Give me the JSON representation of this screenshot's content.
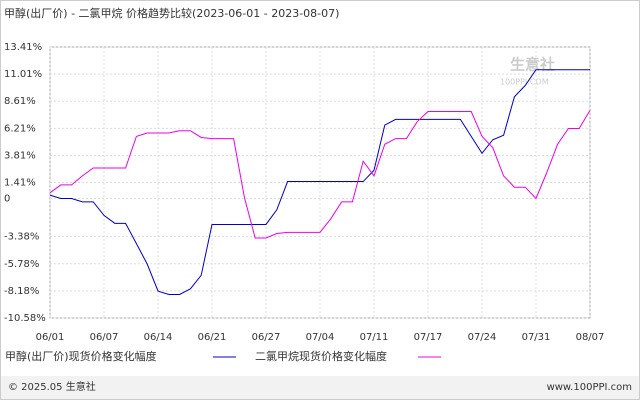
{
  "chart_data": {
    "type": "line",
    "title": "甲醇(出厂价) - 二氯甲烷 价格趋势比较(2023-06-01 - 2023-08-07)",
    "categories": [
      "06/01",
      null,
      null,
      null,
      null,
      "06/07",
      null,
      null,
      null,
      null,
      "06/14",
      null,
      null,
      null,
      null,
      "06/21",
      null,
      null,
      null,
      null,
      "06/27",
      null,
      null,
      null,
      null,
      "07/04",
      null,
      null,
      null,
      null,
      "07/11",
      null,
      null,
      null,
      null,
      "07/17",
      null,
      null,
      null,
      null,
      "07/24",
      null,
      null,
      null,
      null,
      "07/31",
      null,
      null,
      null,
      null,
      "08/07"
    ],
    "series": [
      {
        "name": "甲醇(出厂价)现货价格变化幅度",
        "color": "#0000cc",
        "values": [
          0.3,
          0.0,
          0.0,
          -0.3,
          -0.3,
          -1.5,
          -2.2,
          -2.2,
          -4.0,
          -5.8,
          -8.2,
          -8.5,
          -8.5,
          -8.0,
          -6.8,
          -2.3,
          -2.3,
          -2.3,
          -2.3,
          -2.3,
          -2.3,
          -1.0,
          1.5,
          1.5,
          1.5,
          1.5,
          1.5,
          1.5,
          1.5,
          1.5,
          2.5,
          6.5,
          7.0,
          7.0,
          7.0,
          7.0,
          7.0,
          7.0,
          7.0,
          5.5,
          4.0,
          5.2,
          5.6,
          9.0,
          10.0,
          11.4,
          11.4,
          11.4,
          11.4,
          11.4,
          11.4
        ]
      },
      {
        "name": "二氯甲烷现货价格变化幅度",
        "color": "#ee00ee",
        "values": [
          0.5,
          1.2,
          1.2,
          2.0,
          2.7,
          2.7,
          2.7,
          2.7,
          5.5,
          5.8,
          5.8,
          5.8,
          6.0,
          6.0,
          5.4,
          5.3,
          5.3,
          5.3,
          0.1,
          -3.5,
          -3.5,
          -3.1,
          -3.0,
          -3.0,
          -3.0,
          -3.0,
          -1.8,
          -0.3,
          -0.3,
          3.3,
          2.0,
          4.8,
          5.3,
          5.3,
          6.8,
          7.7,
          7.7,
          7.7,
          7.7,
          7.7,
          5.5,
          4.5,
          2.0,
          1.0,
          1.0,
          0.0,
          2.3,
          4.8,
          6.2,
          6.2,
          7.8
        ]
      }
    ],
    "ylim": [
      -10.58,
      13.41
    ],
    "yticks": [
      {
        "value": 13.41,
        "label": "13.41%"
      },
      {
        "value": 11.01,
        "label": "11.01%"
      },
      {
        "value": 8.61,
        "label": "8.61%"
      },
      {
        "value": 6.21,
        "label": "6.21%"
      },
      {
        "value": 3.81,
        "label": "3.81%"
      },
      {
        "value": 1.41,
        "label": "1.41%"
      },
      0,
      {
        "value": -3.38,
        "label": "-3.38%"
      },
      {
        "value": -5.78,
        "label": "-5.78%"
      },
      {
        "value": -8.18,
        "label": "-8.18%"
      },
      {
        "value": -10.58,
        "label": "-10.58%"
      }
    ],
    "grid": true,
    "watermark": "生意社",
    "watermark_url": "100PPI.COM",
    "footer_left": "© 2025.05 生意社",
    "footer_right": "www.100PPI.com"
  }
}
